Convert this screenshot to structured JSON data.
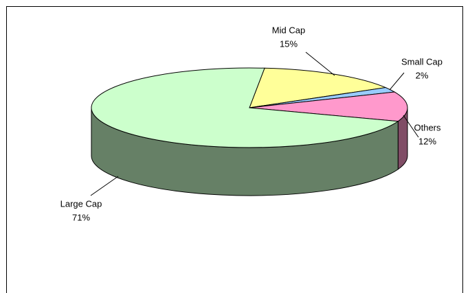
{
  "chart_data": {
    "type": "pie3d",
    "categories": [
      "Mid Cap",
      "Small Cap",
      "Others",
      "Large Cap"
    ],
    "values": [
      15,
      2,
      12,
      71
    ],
    "value_labels": [
      "15%",
      "2%",
      "12%",
      "71%"
    ],
    "colors": [
      "#ffff99",
      "#99ccff",
      "#ff99cc",
      "#ccffcc"
    ]
  }
}
